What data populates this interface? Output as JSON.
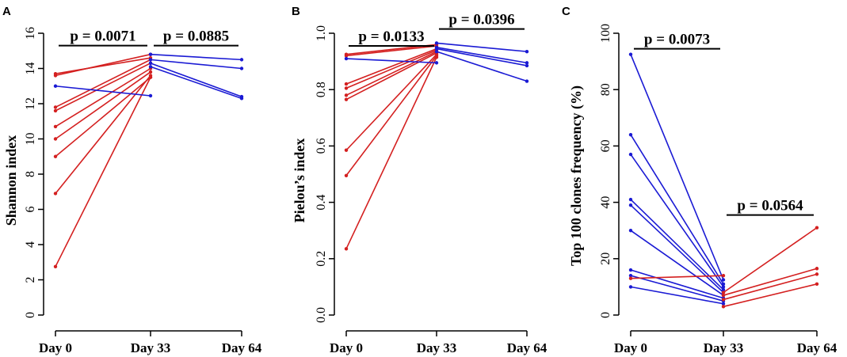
{
  "colors": {
    "red": "#d42020",
    "blue": "#1a1ad4",
    "axis": "#000000"
  },
  "chart_data": [
    {
      "type": "line",
      "panel": "A",
      "ylabel": "Shannon index",
      "categories": [
        "Day 0",
        "Day 33",
        "Day 64"
      ],
      "ylim": [
        0,
        16
      ],
      "yticks": [
        0,
        2,
        4,
        6,
        8,
        10,
        12,
        14,
        16
      ],
      "series": [
        {
          "color": "red",
          "values": [
            13.7,
            14.6,
            null
          ]
        },
        {
          "color": "red",
          "values": [
            13.6,
            14.8,
            null
          ]
        },
        {
          "color": "red",
          "values": [
            11.8,
            14.5,
            null
          ]
        },
        {
          "color": "red",
          "values": [
            11.6,
            14.3,
            null
          ]
        },
        {
          "color": "red",
          "values": [
            10.7,
            14.0,
            null
          ]
        },
        {
          "color": "red",
          "values": [
            10.0,
            13.8,
            null
          ]
        },
        {
          "color": "red",
          "values": [
            9.0,
            13.5,
            null
          ]
        },
        {
          "color": "red",
          "values": [
            6.9,
            13.6,
            null
          ]
        },
        {
          "color": "red",
          "values": [
            2.75,
            13.5,
            null
          ]
        },
        {
          "color": "blue",
          "values": [
            13.0,
            12.45,
            null
          ]
        },
        {
          "color": "blue",
          "values": [
            null,
            14.8,
            14.5
          ]
        },
        {
          "color": "blue",
          "values": [
            null,
            14.5,
            14.0
          ]
        },
        {
          "color": "blue",
          "values": [
            null,
            14.3,
            12.4
          ]
        },
        {
          "color": "blue",
          "values": [
            null,
            14.1,
            12.3
          ]
        }
      ],
      "annotations": [
        {
          "text": "p = 0.0071",
          "from": 0,
          "to": 1,
          "y": 15.3
        },
        {
          "text": "p = 0.0885",
          "from": 1,
          "to": 2,
          "y": 15.3
        }
      ]
    },
    {
      "type": "line",
      "panel": "B",
      "ylabel": "Pielou’s index",
      "categories": [
        "Day 0",
        "Day 33",
        "Day 64"
      ],
      "ylim": [
        0,
        1
      ],
      "yticks": [
        0.0,
        0.2,
        0.4,
        0.6,
        0.8,
        1.0
      ],
      "ytick_labels": [
        "0.0",
        "0.2",
        "0.4",
        "0.6",
        "0.8",
        "1.0"
      ],
      "series": [
        {
          "color": "red",
          "values": [
            0.925,
            0.96,
            null
          ]
        },
        {
          "color": "red",
          "values": [
            0.92,
            0.955,
            null
          ]
        },
        {
          "color": "red",
          "values": [
            0.82,
            0.945,
            null
          ]
        },
        {
          "color": "red",
          "values": [
            0.805,
            0.94,
            null
          ]
        },
        {
          "color": "red",
          "values": [
            0.78,
            0.935,
            null
          ]
        },
        {
          "color": "red",
          "values": [
            0.765,
            0.93,
            null
          ]
        },
        {
          "color": "red",
          "values": [
            0.585,
            0.925,
            null
          ]
        },
        {
          "color": "red",
          "values": [
            0.495,
            0.92,
            null
          ]
        },
        {
          "color": "red",
          "values": [
            0.235,
            0.915,
            null
          ]
        },
        {
          "color": "blue",
          "values": [
            0.91,
            0.895,
            null
          ]
        },
        {
          "color": "blue",
          "values": [
            null,
            0.965,
            0.935
          ]
        },
        {
          "color": "blue",
          "values": [
            null,
            0.95,
            0.895
          ]
        },
        {
          "color": "blue",
          "values": [
            null,
            0.945,
            0.885
          ]
        },
        {
          "color": "blue",
          "values": [
            null,
            0.935,
            0.83
          ]
        }
      ],
      "annotations": [
        {
          "text": "p = 0.0133",
          "from": 0,
          "to": 1,
          "y": 0.955
        },
        {
          "text": "p = 0.0396",
          "from": 1,
          "to": 2,
          "y": 1.015
        }
      ]
    },
    {
      "type": "line",
      "panel": "C",
      "ylabel": "Top 100 clones frequency (%)",
      "categories": [
        "Day 0",
        "Day 33",
        "Day 64"
      ],
      "ylim": [
        0,
        100
      ],
      "yticks": [
        0,
        20,
        40,
        60,
        80,
        100
      ],
      "series": [
        {
          "color": "blue",
          "values": [
            92.5,
            12.5,
            null
          ]
        },
        {
          "color": "blue",
          "values": [
            64.0,
            11.0,
            null
          ]
        },
        {
          "color": "blue",
          "values": [
            57.0,
            10.0,
            null
          ]
        },
        {
          "color": "blue",
          "values": [
            41.0,
            9.0,
            null
          ]
        },
        {
          "color": "blue",
          "values": [
            39.0,
            8.0,
            null
          ]
        },
        {
          "color": "blue",
          "values": [
            30.0,
            7.0,
            null
          ]
        },
        {
          "color": "blue",
          "values": [
            16.0,
            6.0,
            null
          ]
        },
        {
          "color": "blue",
          "values": [
            14.0,
            5.0,
            null
          ]
        },
        {
          "color": "blue",
          "values": [
            10.0,
            4.0,
            null
          ]
        },
        {
          "color": "red",
          "values": [
            13.0,
            14.0,
            null
          ]
        },
        {
          "color": "red",
          "values": [
            null,
            8.0,
            31.0
          ]
        },
        {
          "color": "red",
          "values": [
            null,
            7.0,
            16.5
          ]
        },
        {
          "color": "red",
          "values": [
            null,
            5.5,
            14.5
          ]
        },
        {
          "color": "red",
          "values": [
            null,
            3.0,
            11.0
          ]
        }
      ],
      "annotations": [
        {
          "text": "p = 0.0073",
          "from": 0,
          "to": 1,
          "y": 94.5
        },
        {
          "text": "p = 0.0564",
          "from": 1,
          "to": 2,
          "y": 35.5
        }
      ]
    }
  ]
}
